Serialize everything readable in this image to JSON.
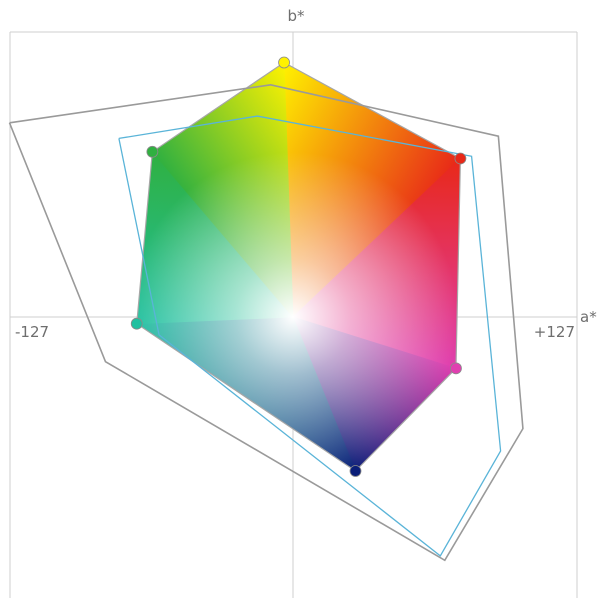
{
  "chart_data": {
    "type": "gamut",
    "x_axis": {
      "label": "a*",
      "min_label": "-127",
      "max_label": "+127",
      "range": [
        -127,
        127
      ]
    },
    "y_axis": {
      "label": "b*",
      "range": [
        -127,
        127
      ]
    },
    "grid": false,
    "series": [
      {
        "points": [
          [
            -127,
            87
          ],
          [
            -10,
            104
          ],
          [
            92,
            81
          ],
          [
            103,
            -50
          ],
          [
            68,
            -109
          ],
          [
            -84,
            -20
          ],
          [
            -127,
            87
          ]
        ],
        "color": "#9a9a9a"
      },
      {
        "points": [
          [
            -78,
            80
          ],
          [
            -16,
            90
          ],
          [
            80,
            72
          ],
          [
            93,
            -60
          ],
          [
            66,
            -107
          ],
          [
            -60,
            -8
          ],
          [
            -78,
            80
          ]
        ],
        "color": "#5ab4d8"
      }
    ],
    "display_gamut": {
      "vertices": [
        {
          "name": "yellow",
          "a": -4,
          "b": 114,
          "color": "#fff200"
        },
        {
          "name": "red",
          "a": 75,
          "b": 71,
          "color": "#e82818"
        },
        {
          "name": "magenta",
          "a": 73,
          "b": -23,
          "color": "#e040b0"
        },
        {
          "name": "blue",
          "a": 28,
          "b": -69,
          "color": "#0a1e78"
        },
        {
          "name": "cyan",
          "a": -70,
          "b": -3,
          "color": "#20c0a0"
        },
        {
          "name": "green",
          "a": -63,
          "b": 74,
          "color": "#30b040"
        }
      ],
      "white_point": {
        "a": 0,
        "b": 0,
        "color": "#ffffff"
      },
      "outline_color": "#a6a6a6"
    }
  }
}
